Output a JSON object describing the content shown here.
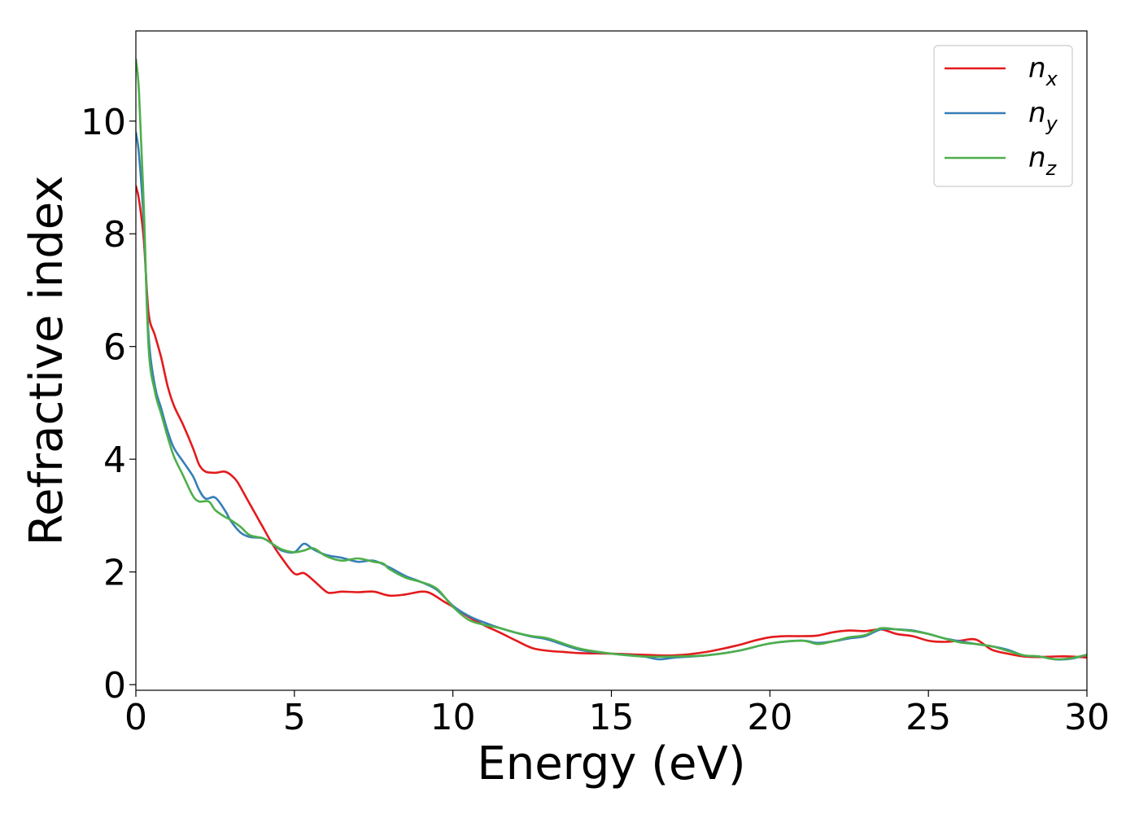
{
  "chart_data": {
    "type": "line",
    "title": "",
    "xlabel": "Energy (eV)",
    "ylabel": "Refractive index",
    "xlim": [
      0,
      30
    ],
    "ylim": [
      -0.1,
      11.6
    ],
    "xticks": [
      0,
      5,
      10,
      15,
      20,
      25,
      30
    ],
    "xtick_labels": [
      "0",
      "5",
      "10",
      "15",
      "20",
      "25",
      "30"
    ],
    "yticks": [
      0,
      2,
      4,
      6,
      8,
      10
    ],
    "ytick_labels": [
      "0",
      "2",
      "4",
      "6",
      "8",
      "10"
    ],
    "grid": false,
    "legend_position": "top-right",
    "series": [
      {
        "name": "n",
        "subscript": "x",
        "color": "#e41a1c",
        "x": [
          0,
          0.1,
          0.25,
          0.4,
          0.6,
          0.8,
          1.0,
          1.2,
          1.5,
          1.8,
          2.0,
          2.2,
          2.5,
          2.8,
          3.0,
          3.2,
          3.5,
          3.8,
          4.0,
          4.3,
          4.6,
          5.0,
          5.3,
          5.6,
          6.0,
          6.2,
          6.5,
          7.0,
          7.5,
          8.0,
          8.5,
          9.0,
          9.3,
          9.7,
          10.0,
          10.5,
          11.0,
          11.5,
          12.0,
          12.5,
          13.0,
          13.5,
          14.0,
          15.0,
          16.0,
          17.0,
          18.0,
          19.0,
          19.5,
          20.0,
          20.5,
          21.0,
          21.5,
          22.0,
          22.5,
          23.0,
          23.5,
          24.0,
          24.5,
          25.0,
          25.5,
          26.0,
          26.5,
          27.0,
          27.5,
          28.0,
          28.5,
          29.0,
          29.5,
          30.0
        ],
        "y": [
          8.85,
          8.6,
          7.9,
          6.6,
          6.2,
          5.8,
          5.3,
          4.95,
          4.6,
          4.2,
          3.9,
          3.78,
          3.76,
          3.78,
          3.72,
          3.6,
          3.3,
          3.0,
          2.8,
          2.5,
          2.25,
          1.97,
          1.98,
          1.85,
          1.65,
          1.63,
          1.65,
          1.64,
          1.65,
          1.58,
          1.6,
          1.65,
          1.62,
          1.48,
          1.38,
          1.2,
          1.05,
          0.92,
          0.78,
          0.65,
          0.6,
          0.58,
          0.56,
          0.55,
          0.53,
          0.52,
          0.58,
          0.7,
          0.78,
          0.84,
          0.86,
          0.86,
          0.87,
          0.93,
          0.96,
          0.95,
          0.98,
          0.9,
          0.86,
          0.78,
          0.76,
          0.78,
          0.8,
          0.62,
          0.55,
          0.5,
          0.49,
          0.5,
          0.5,
          0.48
        ]
      },
      {
        "name": "n",
        "subscript": "y",
        "color": "#377eb8",
        "x": [
          0,
          0.1,
          0.25,
          0.4,
          0.6,
          0.8,
          1.0,
          1.2,
          1.5,
          1.8,
          2.0,
          2.2,
          2.5,
          2.8,
          3.0,
          3.3,
          3.6,
          4.0,
          4.3,
          4.6,
          5.0,
          5.3,
          5.6,
          6.0,
          6.5,
          7.0,
          7.5,
          8.0,
          8.5,
          9.0,
          9.5,
          10.0,
          10.5,
          11.0,
          11.5,
          12.0,
          12.5,
          13.0,
          14.0,
          15.0,
          16.0,
          16.5,
          17.0,
          18.0,
          19.0,
          20.0,
          21.0,
          21.5,
          22.0,
          22.5,
          23.0,
          23.5,
          24.0,
          24.5,
          25.0,
          25.5,
          26.0,
          26.5,
          27.0,
          27.5,
          28.0,
          28.5,
          29.0,
          29.5,
          30.0
        ],
        "y": [
          9.8,
          9.4,
          8.2,
          6.2,
          5.3,
          4.9,
          4.5,
          4.2,
          3.95,
          3.7,
          3.45,
          3.3,
          3.32,
          3.1,
          2.9,
          2.7,
          2.62,
          2.6,
          2.5,
          2.38,
          2.35,
          2.5,
          2.4,
          2.3,
          2.25,
          2.18,
          2.2,
          2.08,
          1.93,
          1.82,
          1.68,
          1.4,
          1.22,
          1.1,
          1.0,
          0.92,
          0.85,
          0.8,
          0.62,
          0.55,
          0.5,
          0.45,
          0.48,
          0.52,
          0.6,
          0.73,
          0.78,
          0.74,
          0.77,
          0.82,
          0.86,
          0.98,
          0.98,
          0.96,
          0.9,
          0.82,
          0.77,
          0.72,
          0.68,
          0.62,
          0.52,
          0.5,
          0.45,
          0.46,
          0.53
        ]
      },
      {
        "name": "n",
        "subscript": "z",
        "color": "#4daf4a",
        "x": [
          0,
          0.1,
          0.25,
          0.4,
          0.6,
          0.8,
          1.0,
          1.2,
          1.5,
          1.8,
          2.0,
          2.3,
          2.5,
          2.8,
          3.0,
          3.3,
          3.6,
          4.0,
          4.3,
          4.6,
          5.0,
          5.3,
          5.6,
          6.0,
          6.5,
          7.0,
          7.5,
          7.8,
          8.0,
          8.5,
          9.0,
          9.5,
          10.0,
          10.5,
          11.0,
          11.5,
          12.0,
          12.5,
          13.0,
          14.0,
          15.0,
          16.0,
          17.0,
          18.0,
          19.0,
          20.0,
          21.0,
          21.5,
          22.0,
          22.5,
          23.0,
          23.5,
          24.0,
          24.5,
          25.0,
          25.5,
          26.0,
          26.5,
          27.0,
          27.5,
          28.0,
          28.5,
          29.0,
          29.5,
          30.0
        ],
        "y": [
          11.1,
          10.5,
          8.5,
          6.0,
          5.2,
          4.8,
          4.4,
          4.05,
          3.7,
          3.35,
          3.25,
          3.25,
          3.1,
          2.98,
          2.92,
          2.8,
          2.65,
          2.6,
          2.5,
          2.4,
          2.35,
          2.38,
          2.42,
          2.28,
          2.2,
          2.24,
          2.18,
          2.15,
          2.05,
          1.9,
          1.82,
          1.7,
          1.38,
          1.15,
          1.06,
          1.0,
          0.92,
          0.86,
          0.82,
          0.64,
          0.55,
          0.5,
          0.5,
          0.52,
          0.6,
          0.73,
          0.78,
          0.72,
          0.77,
          0.84,
          0.88,
          1.0,
          0.98,
          0.95,
          0.9,
          0.82,
          0.75,
          0.72,
          0.68,
          0.6,
          0.52,
          0.5,
          0.45,
          0.47,
          0.53
        ]
      }
    ]
  }
}
